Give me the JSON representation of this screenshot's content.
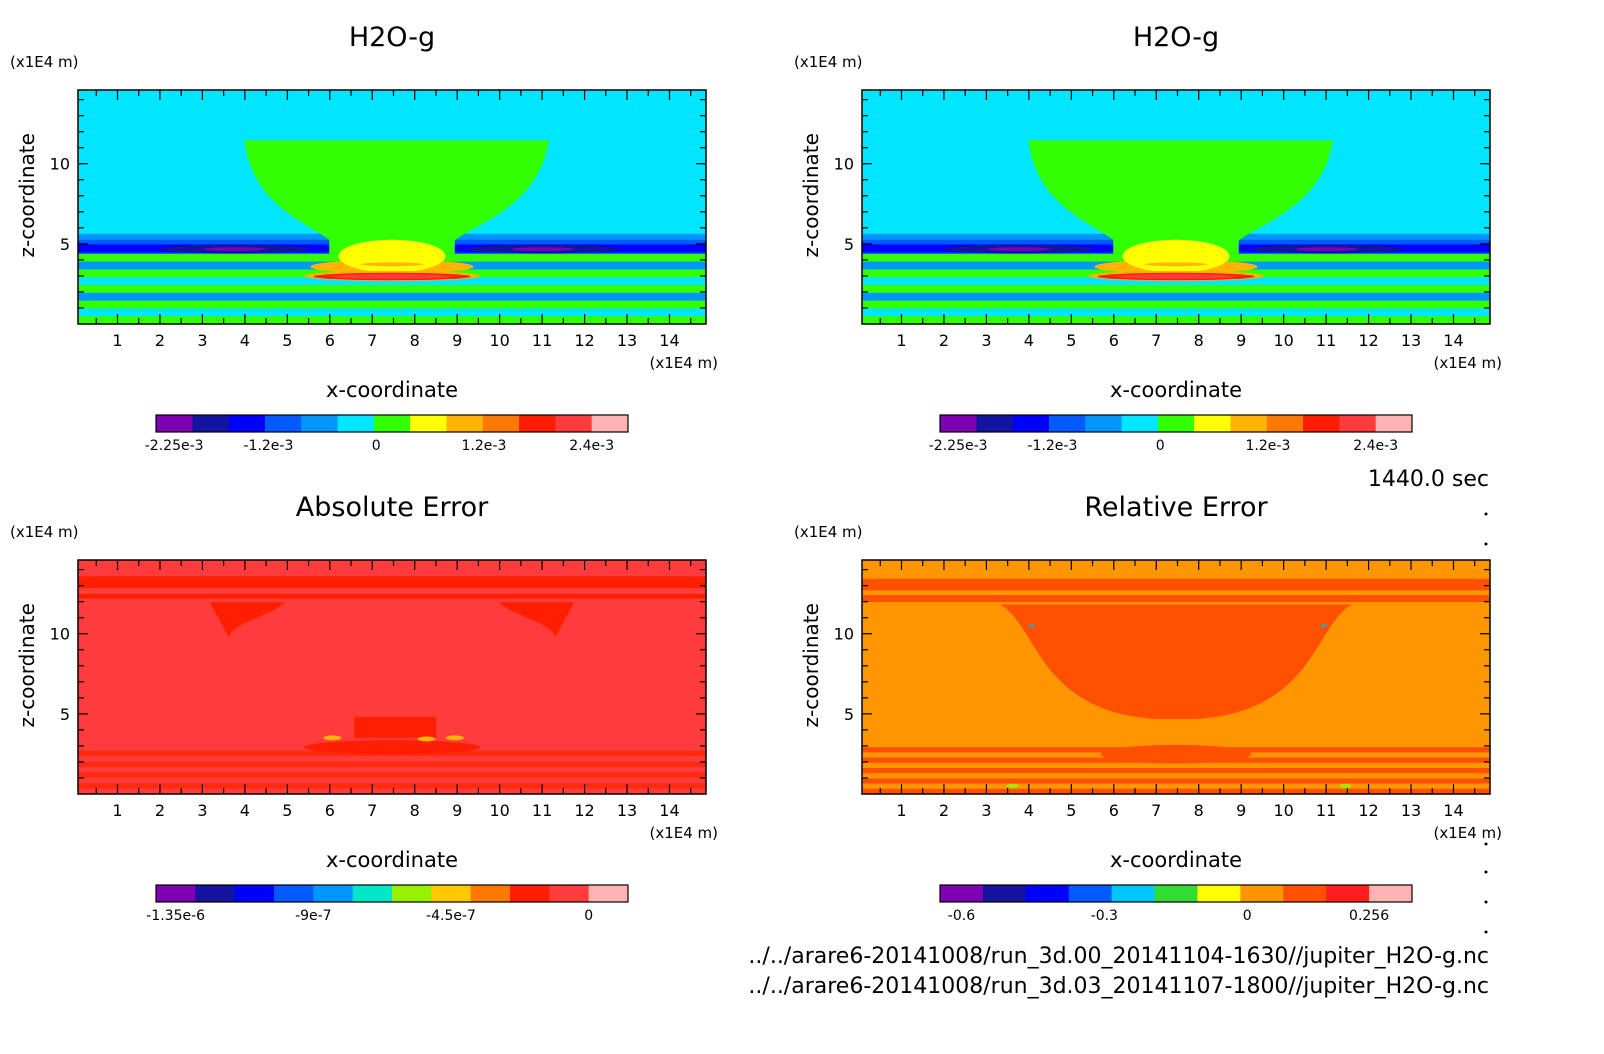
{
  "footer": {
    "time_label": "1440.0 sec",
    "file_1": "../../arare6-20141008/run_3d.00_20141104-1630//jupiter_H2O-g.nc",
    "file_2": "../../arare6-20141008/run_3d.03_20141107-1800//jupiter_H2O-g.nc"
  },
  "chart_data": [
    {
      "type": "heatmap",
      "title": "H2O-g",
      "xlabel": "x-coordinate",
      "ylabel": "z-coordinate",
      "x_unit": "(x1E4 m)",
      "y_unit": "(x1E4 m)",
      "x_ticks": [
        1,
        2,
        3,
        4,
        5,
        6,
        7,
        8,
        9,
        10,
        11,
        12,
        13,
        14
      ],
      "y_ticks": [
        5,
        10
      ],
      "xlim": [
        0.07,
        14.86
      ],
      "ylim": [
        0,
        14.6
      ],
      "colorbar": {
        "colors": [
          "#7f00b2",
          "#1414a0",
          "#0000ff",
          "#005aff",
          "#0096ff",
          "#00e6ff",
          "#32ff00",
          "#ffff00",
          "#ffb400",
          "#ff7800",
          "#ff1e00",
          "#ff3c3c",
          "#ffb4b4"
        ],
        "tick_labels": [
          "-2.25e-3",
          "-1.2e-3",
          "0",
          "1.2e-3",
          "2.4e-3"
        ],
        "tick_values": [
          -0.00225,
          -0.0012,
          0,
          0.0012,
          0.0024
        ]
      },
      "field": "h2o"
    },
    {
      "type": "heatmap",
      "title": "H2O-g",
      "xlabel": "x-coordinate",
      "ylabel": "z-coordinate",
      "x_unit": "(x1E4 m)",
      "y_unit": "(x1E4 m)",
      "x_ticks": [
        1,
        2,
        3,
        4,
        5,
        6,
        7,
        8,
        9,
        10,
        11,
        12,
        13,
        14
      ],
      "y_ticks": [
        5,
        10
      ],
      "xlim": [
        0.07,
        14.86
      ],
      "ylim": [
        0,
        14.6
      ],
      "colorbar": {
        "colors": [
          "#7f00b2",
          "#1414a0",
          "#0000ff",
          "#005aff",
          "#0096ff",
          "#00e6ff",
          "#32ff00",
          "#ffff00",
          "#ffb400",
          "#ff7800",
          "#ff1e00",
          "#ff3c3c",
          "#ffb4b4"
        ],
        "tick_labels": [
          "-2.25e-3",
          "-1.2e-3",
          "0",
          "1.2e-3",
          "2.4e-3"
        ],
        "tick_values": [
          -0.00225,
          -0.0012,
          0,
          0.0012,
          0.0024
        ]
      },
      "field": "h2o"
    },
    {
      "type": "heatmap",
      "title": "Absolute Error",
      "xlabel": "x-coordinate",
      "ylabel": "z-coordinate",
      "x_unit": "(x1E4 m)",
      "y_unit": "(x1E4 m)",
      "x_ticks": [
        1,
        2,
        3,
        4,
        5,
        6,
        7,
        8,
        9,
        10,
        11,
        12,
        13,
        14
      ],
      "y_ticks": [
        5,
        10
      ],
      "xlim": [
        0.07,
        14.86
      ],
      "ylim": [
        0,
        14.6
      ],
      "colorbar": {
        "colors": [
          "#7f00b2",
          "#1414a0",
          "#0000ff",
          "#005aff",
          "#0096ff",
          "#00e6c8",
          "#96f000",
          "#ffc800",
          "#ff7800",
          "#ff1e00",
          "#ff3c3c",
          "#ffb4b4"
        ],
        "tick_labels": [
          "-1.35e-6",
          "-9e-7",
          "-4.5e-7",
          "0"
        ],
        "tick_values": [
          -1.35e-06,
          -9e-07,
          -4.5e-07,
          0
        ]
      },
      "field": "abs"
    },
    {
      "type": "heatmap",
      "title": "Relative Error",
      "xlabel": "x-coordinate",
      "ylabel": "z-coordinate",
      "x_unit": "(x1E4 m)",
      "y_unit": "(x1E4 m)",
      "x_ticks": [
        1,
        2,
        3,
        4,
        5,
        6,
        7,
        8,
        9,
        10,
        11,
        12,
        13,
        14
      ],
      "y_ticks": [
        5,
        10
      ],
      "xlim": [
        0.07,
        14.86
      ],
      "ylim": [
        0,
        14.6
      ],
      "colorbar": {
        "colors": [
          "#7f00b2",
          "#1414a0",
          "#0000ff",
          "#005aff",
          "#00c8ff",
          "#32dc32",
          "#ffff00",
          "#ff9600",
          "#ff5000",
          "#ff1e1e",
          "#ffb4b4"
        ],
        "tick_labels": [
          "-0.6",
          "-0.3",
          "0",
          "0.256"
        ],
        "tick_values": [
          -0.6,
          -0.3,
          0,
          0.256
        ]
      },
      "field": "rel"
    }
  ]
}
